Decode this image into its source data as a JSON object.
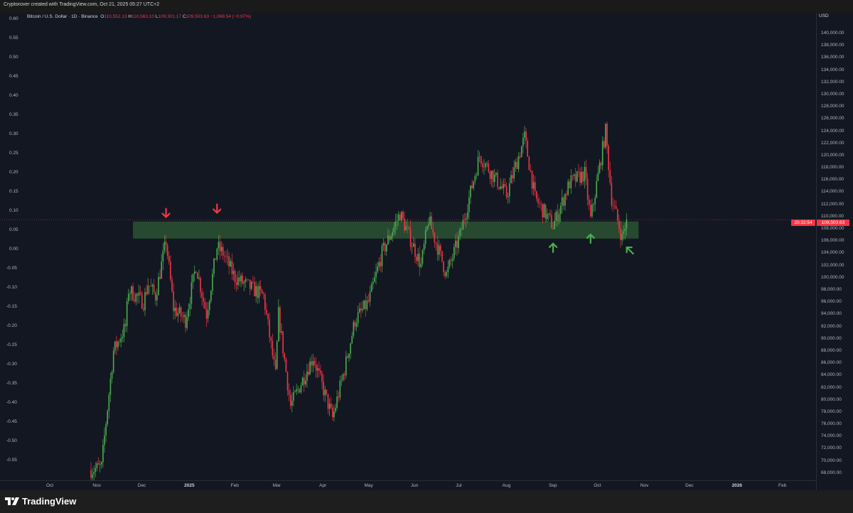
{
  "header": {
    "credit": "Cryptorover created with TradingView.com, Oct 21, 2025 05:27 UTC+2"
  },
  "legend": {
    "symbol": "Bitcoin / U.S. Dollar · 1D · Binance",
    "o_label": "O",
    "o": "110,552.13",
    "h_label": "H",
    "h": "110,563.10",
    "l_label": "L",
    "l": "109,301.17",
    "c_label": "C",
    "c": "109,503.63",
    "change": "−1,068.54 (−0.97%)"
  },
  "price_axis": {
    "currency": "USD",
    "labels": [
      "140,000.00",
      "138,000.00",
      "136,000.00",
      "134,000.00",
      "132,000.00",
      "130,000.00",
      "128,000.00",
      "126,000.00",
      "124,000.00",
      "122,000.00",
      "120,000.00",
      "118,000.00",
      "116,000.00",
      "114,000.00",
      "112,000.00",
      "110,000.00",
      "108,000.00",
      "106,000.00",
      "104,000.00",
      "102,000.00",
      "100,000.00",
      "98,000.00",
      "96,000.00",
      "94,000.00",
      "92,000.00",
      "90,000.00",
      "88,000.00",
      "86,000.00",
      "84,000.00",
      "82,000.00",
      "80,000.00",
      "78,000.00",
      "76,000.00",
      "74,000.00",
      "72,000.00",
      "70,000.00",
      "68,000.00"
    ],
    "current_price": "109,503.63",
    "countdown": "20:32:54"
  },
  "left_axis": {
    "labels": [
      "0.60",
      "0.55",
      "0.50",
      "0.45",
      "0.40",
      "0.35",
      "0.30",
      "0.25",
      "0.20",
      "0.15",
      "0.10",
      "0.05",
      "0.00",
      "-0.05",
      "-0.10",
      "-0.15",
      "-0.20",
      "-0.25",
      "-0.30",
      "-0.35",
      "-0.40",
      "-0.45",
      "-0.50",
      "-0.55"
    ]
  },
  "time_axis": {
    "labels": [
      {
        "t": "Oct",
        "d": "2024-10-01"
      },
      {
        "t": "Nov",
        "d": "2024-11-01"
      },
      {
        "t": "Dec",
        "d": "2024-12-01"
      },
      {
        "t": "2025",
        "d": "2025-01-01",
        "bold": true
      },
      {
        "t": "Feb",
        "d": "2025-02-01"
      },
      {
        "t": "Mar",
        "d": "2025-03-01"
      },
      {
        "t": "Apr",
        "d": "2025-04-01"
      },
      {
        "t": "May",
        "d": "2025-05-01"
      },
      {
        "t": "Jun",
        "d": "2025-06-01"
      },
      {
        "t": "Jul",
        "d": "2025-07-01"
      },
      {
        "t": "Aug",
        "d": "2025-08-01"
      },
      {
        "t": "Sep",
        "d": "2025-09-01"
      },
      {
        "t": "Oct",
        "d": "2025-10-01"
      },
      {
        "t": "Nov",
        "d": "2025-11-01"
      },
      {
        "t": "Dec",
        "d": "2025-12-01"
      },
      {
        "t": "2026",
        "d": "2026-01-01",
        "bold": true
      },
      {
        "t": "Feb",
        "d": "2026-02-01"
      }
    ]
  },
  "footer": {
    "brand": "TradingView"
  },
  "colors": {
    "up": "#4caf50",
    "down": "#f23645",
    "zone": "#2e5b35",
    "arrow_red": "#f23645",
    "arrow_green": "#4caf50"
  },
  "chart_data": {
    "type": "candlestick",
    "symbol": "BTCUSD",
    "interval": "1D",
    "ylim": [
      67000,
      142000
    ],
    "xlim": [
      "2024-09-17",
      "2026-02-20"
    ],
    "grid": false,
    "support_zone": {
      "from": "2024-11-25",
      "to": "2025-10-28",
      "low": 106400,
      "high": 109200
    },
    "close_keypoints": [
      [
        "2024-10-28",
        68500
      ],
      [
        "2024-11-04",
        69000
      ],
      [
        "2024-11-06",
        74000
      ],
      [
        "2024-11-12",
        88000
      ],
      [
        "2024-11-20",
        92000
      ],
      [
        "2024-11-22",
        98000
      ],
      [
        "2024-12-02",
        96000
      ],
      [
        "2024-12-05",
        99000
      ],
      [
        "2024-12-10",
        97000
      ],
      [
        "2024-12-17",
        106000
      ],
      [
        "2024-12-22",
        95000
      ],
      [
        "2024-12-30",
        93000
      ],
      [
        "2025-01-06",
        102000
      ],
      [
        "2025-01-13",
        94000
      ],
      [
        "2025-01-20",
        105000
      ],
      [
        "2025-01-24",
        104000
      ],
      [
        "2025-02-01",
        100000
      ],
      [
        "2025-02-20",
        97000
      ],
      [
        "2025-02-28",
        84000
      ],
      [
        "2025-03-02",
        94000
      ],
      [
        "2025-03-10",
        79000
      ],
      [
        "2025-03-25",
        87000
      ],
      [
        "2025-04-07",
        77000
      ],
      [
        "2025-04-15",
        85000
      ],
      [
        "2025-04-22",
        93000
      ],
      [
        "2025-05-01",
        96000
      ],
      [
        "2025-05-10",
        104000
      ],
      [
        "2025-05-22",
        110500
      ],
      [
        "2025-06-05",
        102000
      ],
      [
        "2025-06-10",
        109500
      ],
      [
        "2025-06-22",
        100500
      ],
      [
        "2025-07-01",
        107000
      ],
      [
        "2025-07-10",
        116000
      ],
      [
        "2025-07-14",
        120000
      ],
      [
        "2025-08-01",
        113500
      ],
      [
        "2025-08-13",
        123000
      ],
      [
        "2025-08-20",
        113000
      ],
      [
        "2025-09-01",
        108500
      ],
      [
        "2025-09-12",
        115500
      ],
      [
        "2025-09-22",
        117000
      ],
      [
        "2025-09-26",
        109500
      ],
      [
        "2025-10-06",
        124000
      ],
      [
        "2025-10-10",
        113000
      ],
      [
        "2025-10-17",
        106500
      ],
      [
        "2025-10-20",
        109500
      ]
    ],
    "annotations": [
      {
        "type": "arrow-down",
        "color": "red",
        "date": "2024-12-17",
        "price": 110500
      },
      {
        "type": "arrow-down",
        "color": "red",
        "date": "2025-01-20",
        "price": 111200
      },
      {
        "type": "arrow-up",
        "color": "green",
        "date": "2025-09-01",
        "price": 105000
      },
      {
        "type": "arrow-up",
        "color": "green",
        "date": "2025-09-26",
        "price": 106500
      },
      {
        "type": "arrow-up-left",
        "color": "green",
        "date": "2025-10-22",
        "price": 104500
      }
    ]
  }
}
